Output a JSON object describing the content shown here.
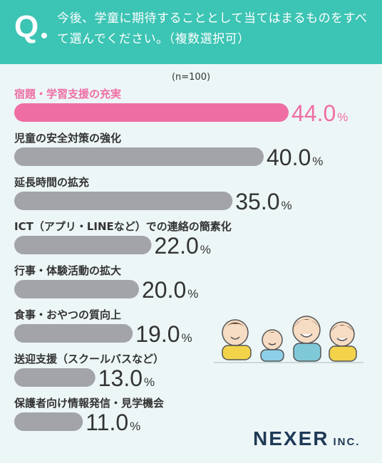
{
  "header": {
    "q_mark": "Q",
    "question": "今後、学童に期待することとして当てはまるものをすべて選んでください。（複数選択可）"
  },
  "sample_label": "(n=100)",
  "logo": {
    "main": "NEXER",
    "sub": "INC."
  },
  "colors": {
    "highlight": "#ee6ea4",
    "bar": "#a3a4a8",
    "header": "#3cc4b4"
  },
  "chart_data": {
    "type": "bar",
    "orientation": "horizontal",
    "categories": [
      "宿題・学習支援の充実",
      "児童の安全対策の強化",
      "延長時間の拡充",
      "ICT（アプリ・LINEなど）での連絡の簡素化",
      "行事・体験活動の拡大",
      "食事・おやつの質向上",
      "送迎支援（スクールバスなど）",
      "保護者向け情報発信・見学機会"
    ],
    "values": [
      44.0,
      40.0,
      35.0,
      22.0,
      20.0,
      19.0,
      13.0,
      11.0
    ],
    "value_suffix": "%",
    "highlight_index": 0
  }
}
